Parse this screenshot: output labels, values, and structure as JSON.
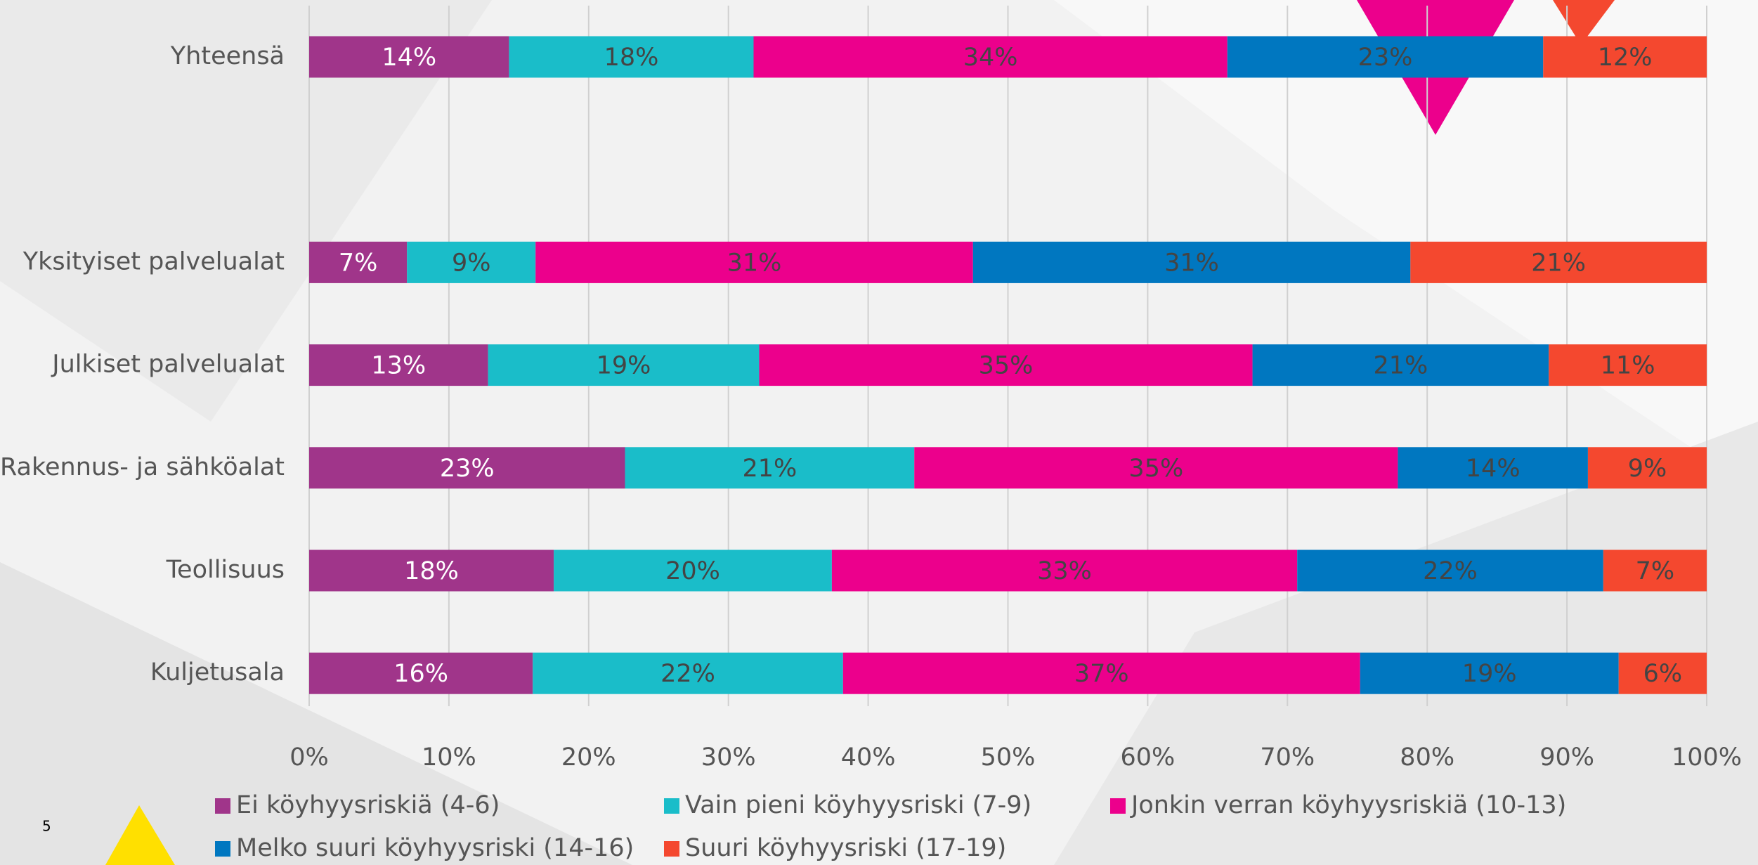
{
  "chart_data": {
    "type": "stacked-bar",
    "orientation": "horizontal",
    "categories": [
      "Yhteensä",
      null,
      "Yksityiset palvelualat",
      "Julkiset palvelualat",
      "Rakennus- ja sähköalat",
      "Teollisuus",
      "Kuljetusala"
    ],
    "series": [
      {
        "name": "Ei köyhyysriskiä (4-6)",
        "color": "#a0358a",
        "values": [
          14.3,
          null,
          7.0,
          12.8,
          22.6,
          17.5,
          16.0
        ],
        "value_labels": [
          "14%",
          null,
          "7%",
          "13%",
          "23%",
          "18%",
          "16%"
        ]
      },
      {
        "name": "Vain pieni köyhyysriski (7-9)",
        "color": "#1abdc9",
        "values": [
          17.5,
          null,
          9.2,
          19.4,
          20.7,
          19.9,
          22.2
        ],
        "value_labels": [
          "18%",
          null,
          "9%",
          "19%",
          "21%",
          "20%",
          "22%"
        ]
      },
      {
        "name": "Jonkin verran köyhyysriskiä (10-13)",
        "color": "#ec008c",
        "values": [
          33.9,
          null,
          31.3,
          35.3,
          34.6,
          33.3,
          37.0
        ],
        "value_labels": [
          "34%",
          null,
          "31%",
          "35%",
          "35%",
          "33%",
          "37%"
        ]
      },
      {
        "name": "Melko suuri köyhyysriski (14-16)",
        "color": "#0077c0",
        "values": [
          22.6,
          null,
          31.3,
          21.2,
          13.6,
          21.9,
          18.5
        ],
        "value_labels": [
          "23%",
          null,
          "31%",
          "21%",
          "14%",
          "22%",
          "19%"
        ]
      },
      {
        "name": "Suuri köyhyysriski (17-19)",
        "color": "#f4482f",
        "values": [
          11.7,
          null,
          21.2,
          11.3,
          8.5,
          7.4,
          6.3
        ],
        "value_labels": [
          "12%",
          null,
          "21%",
          "11%",
          "9%",
          "7%",
          "6%"
        ]
      }
    ],
    "xlim": [
      0,
      100
    ],
    "xticks": [
      {
        "value": 0,
        "label": "0%"
      },
      {
        "value": 10,
        "label": "10%"
      },
      {
        "value": 20,
        "label": "20%"
      },
      {
        "value": 30,
        "label": "30%"
      },
      {
        "value": 40,
        "label": "40%"
      },
      {
        "value": 50,
        "label": "50%"
      },
      {
        "value": 60,
        "label": "60%"
      },
      {
        "value": 70,
        "label": "70%"
      },
      {
        "value": 80,
        "label": "80%"
      },
      {
        "value": 90,
        "label": "90%"
      },
      {
        "value": 100,
        "label": "100%"
      }
    ],
    "grid": true,
    "legend": "bottom"
  },
  "page_number": "5"
}
